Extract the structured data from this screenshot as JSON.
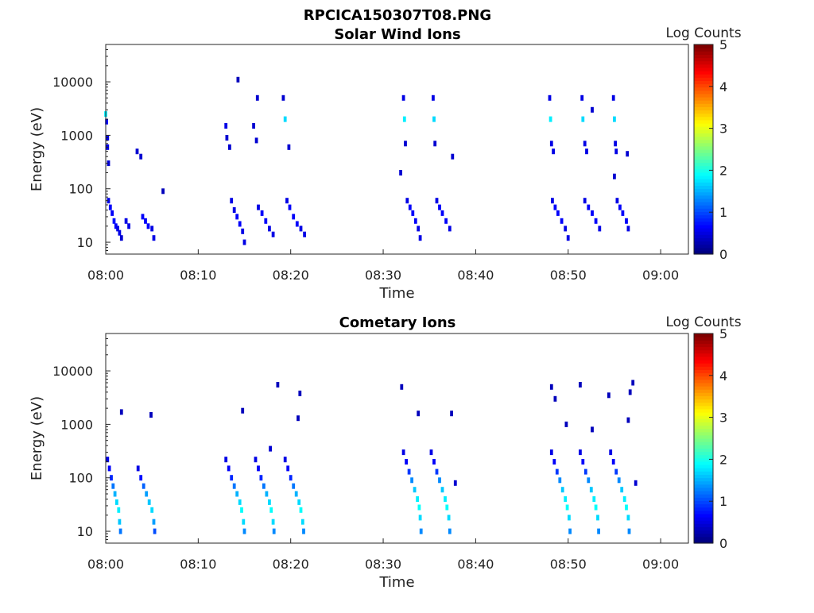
{
  "figure": {
    "title_line1": "RPCICA150307T08.PNG"
  },
  "colors": {
    "axis": "#262626",
    "colormap": [
      "#00007f",
      "#0000ff",
      "#007fff",
      "#00ffff",
      "#7fff7f",
      "#ffff00",
      "#ff7f00",
      "#ff0000",
      "#7f0000"
    ]
  },
  "chart_data": [
    {
      "type": "heatmap",
      "title": "Solar Wind Ions",
      "xlabel": "Time",
      "ylabel": "Energy (eV)",
      "yscale": "log",
      "ylim": [
        6,
        50000
      ],
      "xlim": [
        "08:00",
        "09:03"
      ],
      "x_ticks": [
        "08:00",
        "08:10",
        "08:20",
        "08:30",
        "08:40",
        "08:50",
        "09:00"
      ],
      "y_ticks": [
        "10",
        "100",
        "1000",
        "10000"
      ],
      "colorbar": {
        "label": "Log Counts",
        "range": [
          0,
          5
        ],
        "ticks": [
          "0",
          "1",
          "2",
          "3",
          "4",
          "5"
        ]
      },
      "bursts_minutes": [
        [
          0.0,
          1.0
        ],
        [
          3.5,
          5.5
        ],
        [
          13.0,
          15.0
        ],
        [
          16.3,
          18.5
        ],
        [
          19.5,
          22.0
        ],
        [
          32.0,
          34.0
        ],
        [
          35.3,
          37.5
        ],
        [
          48.0,
          50.0
        ],
        [
          51.3,
          53.5
        ],
        [
          54.8,
          56.5
        ]
      ],
      "cells": [
        {
          "t": 0.0,
          "e": 2500,
          "v": 1.8
        },
        {
          "t": 0.1,
          "e": 1800,
          "v": 0.6
        },
        {
          "t": 0.2,
          "e": 900,
          "v": 0.5
        },
        {
          "t": 0.2,
          "e": 600,
          "v": 0.5
        },
        {
          "t": 0.3,
          "e": 300,
          "v": 0.4
        },
        {
          "t": 0.3,
          "e": 60,
          "v": 0.5
        },
        {
          "t": 0.5,
          "e": 45,
          "v": 0.6
        },
        {
          "t": 0.7,
          "e": 35,
          "v": 0.6
        },
        {
          "t": 0.9,
          "e": 25,
          "v": 0.7
        },
        {
          "t": 1.1,
          "e": 20,
          "v": 0.6
        },
        {
          "t": 1.3,
          "e": 18,
          "v": 0.5
        },
        {
          "t": 1.5,
          "e": 15,
          "v": 0.5
        },
        {
          "t": 1.7,
          "e": 12,
          "v": 0.4
        },
        {
          "t": 2.2,
          "e": 25,
          "v": 0.5
        },
        {
          "t": 2.5,
          "e": 20,
          "v": 0.5
        },
        {
          "t": 4.0,
          "e": 30,
          "v": 0.6
        },
        {
          "t": 4.3,
          "e": 25,
          "v": 0.6
        },
        {
          "t": 4.6,
          "e": 20,
          "v": 0.6
        },
        {
          "t": 5.0,
          "e": 18,
          "v": 0.5
        },
        {
          "t": 5.2,
          "e": 12,
          "v": 0.5
        },
        {
          "t": 3.4,
          "e": 500,
          "v": 0.4
        },
        {
          "t": 3.8,
          "e": 400,
          "v": 0.4
        },
        {
          "t": 6.2,
          "e": 90,
          "v": 0.3
        },
        {
          "t": 13.0,
          "e": 1500,
          "v": 0.5
        },
        {
          "t": 13.1,
          "e": 900,
          "v": 0.4
        },
        {
          "t": 13.4,
          "e": 600,
          "v": 0.4
        },
        {
          "t": 13.6,
          "e": 60,
          "v": 0.5
        },
        {
          "t": 13.9,
          "e": 40,
          "v": 0.5
        },
        {
          "t": 14.2,
          "e": 30,
          "v": 0.6
        },
        {
          "t": 14.5,
          "e": 22,
          "v": 0.6
        },
        {
          "t": 14.8,
          "e": 16,
          "v": 0.5
        },
        {
          "t": 15.0,
          "e": 10,
          "v": 0.5
        },
        {
          "t": 14.3,
          "e": 11000,
          "v": 0.3
        },
        {
          "t": 16.0,
          "e": 1500,
          "v": 0.4
        },
        {
          "t": 16.4,
          "e": 5000,
          "v": 0.4
        },
        {
          "t": 16.5,
          "e": 45,
          "v": 0.5
        },
        {
          "t": 16.9,
          "e": 35,
          "v": 0.6
        },
        {
          "t": 17.3,
          "e": 25,
          "v": 0.6
        },
        {
          "t": 17.7,
          "e": 18,
          "v": 0.5
        },
        {
          "t": 18.1,
          "e": 14,
          "v": 0.5
        },
        {
          "t": 16.3,
          "e": 800,
          "v": 0.4
        },
        {
          "t": 19.2,
          "e": 5000,
          "v": 0.4
        },
        {
          "t": 19.4,
          "e": 2000,
          "v": 1.7
        },
        {
          "t": 19.6,
          "e": 60,
          "v": 0.5
        },
        {
          "t": 19.9,
          "e": 45,
          "v": 0.6
        },
        {
          "t": 20.3,
          "e": 30,
          "v": 0.6
        },
        {
          "t": 20.7,
          "e": 22,
          "v": 0.6
        },
        {
          "t": 21.1,
          "e": 18,
          "v": 0.5
        },
        {
          "t": 21.5,
          "e": 14,
          "v": 0.5
        },
        {
          "t": 19.8,
          "e": 600,
          "v": 0.4
        },
        {
          "t": 32.2,
          "e": 5000,
          "v": 0.5
        },
        {
          "t": 32.3,
          "e": 2000,
          "v": 1.8
        },
        {
          "t": 32.4,
          "e": 700,
          "v": 0.4
        },
        {
          "t": 32.6,
          "e": 60,
          "v": 0.5
        },
        {
          "t": 32.9,
          "e": 45,
          "v": 0.6
        },
        {
          "t": 33.2,
          "e": 35,
          "v": 0.6
        },
        {
          "t": 33.5,
          "e": 25,
          "v": 0.6
        },
        {
          "t": 33.8,
          "e": 18,
          "v": 0.5
        },
        {
          "t": 34.0,
          "e": 12,
          "v": 0.5
        },
        {
          "t": 31.9,
          "e": 200,
          "v": 0.4
        },
        {
          "t": 35.4,
          "e": 5000,
          "v": 0.5
        },
        {
          "t": 35.5,
          "e": 2000,
          "v": 1.7
        },
        {
          "t": 35.6,
          "e": 700,
          "v": 0.4
        },
        {
          "t": 35.8,
          "e": 60,
          "v": 0.5
        },
        {
          "t": 36.1,
          "e": 45,
          "v": 0.6
        },
        {
          "t": 36.4,
          "e": 35,
          "v": 0.6
        },
        {
          "t": 36.8,
          "e": 25,
          "v": 0.6
        },
        {
          "t": 37.2,
          "e": 18,
          "v": 0.5
        },
        {
          "t": 37.5,
          "e": 400,
          "v": 0.4
        },
        {
          "t": 48.0,
          "e": 5000,
          "v": 0.5
        },
        {
          "t": 48.1,
          "e": 2000,
          "v": 1.8
        },
        {
          "t": 48.2,
          "e": 700,
          "v": 0.5
        },
        {
          "t": 48.4,
          "e": 500,
          "v": 0.5
        },
        {
          "t": 48.3,
          "e": 60,
          "v": 0.5
        },
        {
          "t": 48.6,
          "e": 45,
          "v": 0.6
        },
        {
          "t": 48.9,
          "e": 35,
          "v": 0.6
        },
        {
          "t": 49.3,
          "e": 25,
          "v": 0.6
        },
        {
          "t": 49.7,
          "e": 18,
          "v": 0.5
        },
        {
          "t": 50.0,
          "e": 12,
          "v": 0.5
        },
        {
          "t": 51.5,
          "e": 5000,
          "v": 0.5
        },
        {
          "t": 51.6,
          "e": 2000,
          "v": 1.7
        },
        {
          "t": 51.8,
          "e": 700,
          "v": 0.5
        },
        {
          "t": 52.0,
          "e": 500,
          "v": 0.5
        },
        {
          "t": 51.8,
          "e": 60,
          "v": 0.5
        },
        {
          "t": 52.2,
          "e": 45,
          "v": 0.6
        },
        {
          "t": 52.6,
          "e": 35,
          "v": 0.6
        },
        {
          "t": 53.0,
          "e": 25,
          "v": 0.6
        },
        {
          "t": 53.4,
          "e": 18,
          "v": 0.5
        },
        {
          "t": 52.6,
          "e": 3000,
          "v": 0.4
        },
        {
          "t": 54.9,
          "e": 5000,
          "v": 0.5
        },
        {
          "t": 55.0,
          "e": 2000,
          "v": 1.7
        },
        {
          "t": 55.1,
          "e": 700,
          "v": 0.5
        },
        {
          "t": 55.2,
          "e": 500,
          "v": 0.5
        },
        {
          "t": 55.0,
          "e": 170,
          "v": 0.4
        },
        {
          "t": 55.3,
          "e": 60,
          "v": 0.5
        },
        {
          "t": 55.6,
          "e": 45,
          "v": 0.6
        },
        {
          "t": 55.9,
          "e": 35,
          "v": 0.6
        },
        {
          "t": 56.3,
          "e": 25,
          "v": 0.6
        },
        {
          "t": 56.5,
          "e": 18,
          "v": 0.5
        },
        {
          "t": 56.4,
          "e": 450,
          "v": 0.4
        }
      ]
    },
    {
      "type": "heatmap",
      "title": "Cometary Ions",
      "xlabel": "Time",
      "ylabel": "Energy (eV)",
      "yscale": "log",
      "ylim": [
        6,
        50000
      ],
      "xlim": [
        "08:00",
        "09:03"
      ],
      "x_ticks": [
        "08:00",
        "08:10",
        "08:20",
        "08:30",
        "08:40",
        "08:50",
        "09:00"
      ],
      "y_ticks": [
        "10",
        "100",
        "1000",
        "10000"
      ],
      "colorbar": {
        "label": "Log Counts",
        "range": [
          0,
          5
        ],
        "ticks": [
          "0",
          "1",
          "2",
          "3",
          "4",
          "5"
        ]
      },
      "bursts_minutes": [
        [
          0.0,
          1.5
        ],
        [
          3.3,
          5.8
        ],
        [
          12.8,
          15.3
        ],
        [
          16.0,
          18.5
        ],
        [
          19.2,
          22.0
        ],
        [
          32.0,
          34.3
        ],
        [
          35.0,
          37.5
        ],
        [
          48.0,
          50.3
        ],
        [
          51.0,
          53.5
        ],
        [
          54.5,
          57.0
        ]
      ],
      "cells": [
        {
          "t": 0.2,
          "e": 220,
          "v": 0.5
        },
        {
          "t": 0.4,
          "e": 150,
          "v": 0.6
        },
        {
          "t": 0.6,
          "e": 100,
          "v": 0.8
        },
        {
          "t": 0.8,
          "e": 70,
          "v": 1.2
        },
        {
          "t": 1.0,
          "e": 50,
          "v": 1.5
        },
        {
          "t": 1.2,
          "e": 35,
          "v": 1.7
        },
        {
          "t": 1.4,
          "e": 25,
          "v": 1.8
        },
        {
          "t": 1.5,
          "e": 15,
          "v": 1.6
        },
        {
          "t": 1.6,
          "e": 10,
          "v": 1.2
        },
        {
          "t": 3.5,
          "e": 150,
          "v": 0.5
        },
        {
          "t": 3.8,
          "e": 100,
          "v": 0.7
        },
        {
          "t": 4.1,
          "e": 70,
          "v": 1.1
        },
        {
          "t": 4.4,
          "e": 50,
          "v": 1.4
        },
        {
          "t": 4.7,
          "e": 35,
          "v": 1.6
        },
        {
          "t": 5.0,
          "e": 25,
          "v": 1.7
        },
        {
          "t": 5.2,
          "e": 15,
          "v": 1.4
        },
        {
          "t": 5.3,
          "e": 10,
          "v": 1.0
        },
        {
          "t": 1.7,
          "e": 1700,
          "v": 0.3
        },
        {
          "t": 4.9,
          "e": 1500,
          "v": 0.3
        },
        {
          "t": 13.0,
          "e": 220,
          "v": 0.5
        },
        {
          "t": 13.3,
          "e": 150,
          "v": 0.6
        },
        {
          "t": 13.6,
          "e": 100,
          "v": 0.8
        },
        {
          "t": 13.9,
          "e": 70,
          "v": 1.2
        },
        {
          "t": 14.2,
          "e": 50,
          "v": 1.5
        },
        {
          "t": 14.5,
          "e": 35,
          "v": 1.7
        },
        {
          "t": 14.7,
          "e": 25,
          "v": 1.9
        },
        {
          "t": 14.9,
          "e": 15,
          "v": 1.7
        },
        {
          "t": 15.0,
          "e": 10,
          "v": 1.3
        },
        {
          "t": 14.8,
          "e": 1800,
          "v": 0.3
        },
        {
          "t": 16.2,
          "e": 220,
          "v": 0.5
        },
        {
          "t": 16.5,
          "e": 150,
          "v": 0.6
        },
        {
          "t": 16.8,
          "e": 100,
          "v": 0.8
        },
        {
          "t": 17.1,
          "e": 70,
          "v": 1.2
        },
        {
          "t": 17.4,
          "e": 50,
          "v": 1.5
        },
        {
          "t": 17.7,
          "e": 35,
          "v": 1.7
        },
        {
          "t": 17.9,
          "e": 25,
          "v": 1.9
        },
        {
          "t": 18.1,
          "e": 15,
          "v": 1.7
        },
        {
          "t": 18.2,
          "e": 10,
          "v": 1.3
        },
        {
          "t": 17.8,
          "e": 350,
          "v": 0.4
        },
        {
          "t": 18.6,
          "e": 5500,
          "v": 0.3
        },
        {
          "t": 19.4,
          "e": 220,
          "v": 0.5
        },
        {
          "t": 19.7,
          "e": 150,
          "v": 0.6
        },
        {
          "t": 20.0,
          "e": 100,
          "v": 0.8
        },
        {
          "t": 20.3,
          "e": 70,
          "v": 1.2
        },
        {
          "t": 20.6,
          "e": 50,
          "v": 1.5
        },
        {
          "t": 20.9,
          "e": 35,
          "v": 1.7
        },
        {
          "t": 21.1,
          "e": 25,
          "v": 1.9
        },
        {
          "t": 21.3,
          "e": 15,
          "v": 1.7
        },
        {
          "t": 21.4,
          "e": 10,
          "v": 1.3
        },
        {
          "t": 21.0,
          "e": 3800,
          "v": 0.3
        },
        {
          "t": 20.8,
          "e": 1300,
          "v": 0.3
        },
        {
          "t": 32.2,
          "e": 300,
          "v": 0.5
        },
        {
          "t": 32.5,
          "e": 200,
          "v": 0.6
        },
        {
          "t": 32.8,
          "e": 130,
          "v": 0.9
        },
        {
          "t": 33.1,
          "e": 90,
          "v": 1.3
        },
        {
          "t": 33.4,
          "e": 60,
          "v": 1.6
        },
        {
          "t": 33.7,
          "e": 40,
          "v": 1.8
        },
        {
          "t": 33.9,
          "e": 28,
          "v": 1.9
        },
        {
          "t": 34.0,
          "e": 18,
          "v": 1.7
        },
        {
          "t": 34.1,
          "e": 10,
          "v": 1.3
        },
        {
          "t": 32.0,
          "e": 5000,
          "v": 0.3
        },
        {
          "t": 33.8,
          "e": 1600,
          "v": 0.3
        },
        {
          "t": 35.2,
          "e": 300,
          "v": 0.5
        },
        {
          "t": 35.5,
          "e": 200,
          "v": 0.6
        },
        {
          "t": 35.8,
          "e": 130,
          "v": 0.9
        },
        {
          "t": 36.1,
          "e": 90,
          "v": 1.3
        },
        {
          "t": 36.4,
          "e": 60,
          "v": 1.6
        },
        {
          "t": 36.7,
          "e": 40,
          "v": 1.8
        },
        {
          "t": 36.9,
          "e": 28,
          "v": 1.9
        },
        {
          "t": 37.1,
          "e": 18,
          "v": 1.7
        },
        {
          "t": 37.2,
          "e": 10,
          "v": 1.3
        },
        {
          "t": 37.4,
          "e": 1600,
          "v": 0.3
        },
        {
          "t": 37.8,
          "e": 80,
          "v": 0.4
        },
        {
          "t": 48.2,
          "e": 300,
          "v": 0.5
        },
        {
          "t": 48.5,
          "e": 200,
          "v": 0.6
        },
        {
          "t": 48.8,
          "e": 130,
          "v": 0.9
        },
        {
          "t": 49.1,
          "e": 90,
          "v": 1.3
        },
        {
          "t": 49.4,
          "e": 60,
          "v": 1.6
        },
        {
          "t": 49.7,
          "e": 40,
          "v": 1.8
        },
        {
          "t": 49.9,
          "e": 28,
          "v": 1.9
        },
        {
          "t": 50.1,
          "e": 18,
          "v": 1.7
        },
        {
          "t": 50.2,
          "e": 10,
          "v": 1.3
        },
        {
          "t": 48.2,
          "e": 5000,
          "v": 0.3
        },
        {
          "t": 48.6,
          "e": 3000,
          "v": 0.3
        },
        {
          "t": 49.8,
          "e": 1000,
          "v": 0.3
        },
        {
          "t": 51.3,
          "e": 300,
          "v": 0.5
        },
        {
          "t": 51.6,
          "e": 200,
          "v": 0.6
        },
        {
          "t": 51.9,
          "e": 130,
          "v": 0.9
        },
        {
          "t": 52.2,
          "e": 90,
          "v": 1.3
        },
        {
          "t": 52.5,
          "e": 60,
          "v": 1.6
        },
        {
          "t": 52.8,
          "e": 40,
          "v": 1.8
        },
        {
          "t": 53.0,
          "e": 28,
          "v": 1.9
        },
        {
          "t": 53.2,
          "e": 18,
          "v": 1.7
        },
        {
          "t": 53.3,
          "e": 10,
          "v": 1.3
        },
        {
          "t": 51.3,
          "e": 5500,
          "v": 0.3
        },
        {
          "t": 52.6,
          "e": 800,
          "v": 0.3
        },
        {
          "t": 54.6,
          "e": 300,
          "v": 0.5
        },
        {
          "t": 54.9,
          "e": 200,
          "v": 0.6
        },
        {
          "t": 55.2,
          "e": 130,
          "v": 0.9
        },
        {
          "t": 55.5,
          "e": 90,
          "v": 1.3
        },
        {
          "t": 55.8,
          "e": 60,
          "v": 1.6
        },
        {
          "t": 56.1,
          "e": 40,
          "v": 1.8
        },
        {
          "t": 56.3,
          "e": 28,
          "v": 1.9
        },
        {
          "t": 56.5,
          "e": 18,
          "v": 1.7
        },
        {
          "t": 56.6,
          "e": 10,
          "v": 1.3
        },
        {
          "t": 54.4,
          "e": 3500,
          "v": 0.3
        },
        {
          "t": 56.7,
          "e": 4000,
          "v": 0.3
        },
        {
          "t": 57.0,
          "e": 6000,
          "v": 0.3
        },
        {
          "t": 56.5,
          "e": 1200,
          "v": 0.3
        },
        {
          "t": 57.3,
          "e": 80,
          "v": 0.4
        }
      ]
    }
  ]
}
